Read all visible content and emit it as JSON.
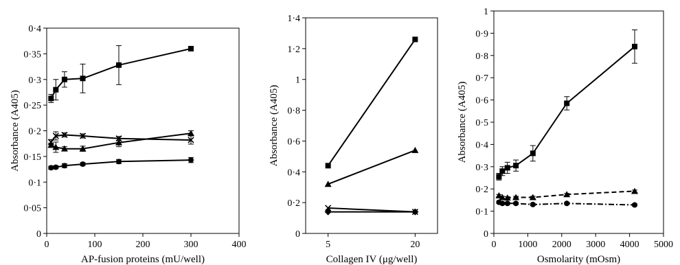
{
  "chart_data": [
    {
      "type": "line",
      "xlabel": "AP-fusion proteins (mU/well)",
      "ylabel": "Absorbance (A405)",
      "xlim": [
        0,
        400
      ],
      "ylim": [
        0,
        0.4
      ],
      "x_ticks": [
        0,
        100,
        200,
        300,
        400
      ],
      "x_tick_labels": [
        "0",
        "100",
        "200",
        "300",
        "400"
      ],
      "y_ticks": [
        0,
        0.05,
        0.1,
        0.15,
        0.2,
        0.25,
        0.3,
        0.35,
        0.4
      ],
      "y_tick_labels": [
        "0",
        "0·05",
        "0·1",
        "0·15",
        "0·2",
        "0·25",
        "0·3",
        "0·35",
        "0·4"
      ],
      "grid": false,
      "series": [
        {
          "marker": "square",
          "x": [
            9,
            19,
            37,
            75,
            150,
            300
          ],
          "y": [
            0.263,
            0.28,
            0.3,
            0.302,
            0.328,
            0.36
          ],
          "err": [
            0.008,
            0.02,
            0.015,
            0.028,
            0.038,
            0.003
          ]
        },
        {
          "marker": "cross",
          "x": [
            9,
            19,
            37,
            75,
            150,
            300
          ],
          "y": [
            0.178,
            0.19,
            0.192,
            0.19,
            0.185,
            0.182
          ],
          "err": [
            0.005,
            0.008,
            0.004,
            0.004,
            0.004,
            0.008
          ]
        },
        {
          "marker": "triangle",
          "x": [
            9,
            19,
            37,
            75,
            150,
            300
          ],
          "y": [
            0.172,
            0.168,
            0.165,
            0.165,
            0.177,
            0.195
          ],
          "err": [
            0.004,
            0.01,
            0.004,
            0.005,
            0.008,
            0.005
          ]
        },
        {
          "marker": "circle",
          "x": [
            9,
            19,
            37,
            75,
            150,
            300
          ],
          "y": [
            0.128,
            0.129,
            0.132,
            0.135,
            0.14,
            0.143
          ],
          "err": [
            0.003,
            0.003,
            0.004,
            0.003,
            0.004,
            0.005
          ]
        }
      ]
    },
    {
      "type": "line",
      "xlabel": "Collagen IV (μg/well)",
      "ylabel": "Absorbance (A405)",
      "categories": [
        "5",
        "20"
      ],
      "ylim": [
        0,
        1.4
      ],
      "y_ticks": [
        0,
        0.2,
        0.4,
        0.6,
        0.8,
        1.0,
        1.2,
        1.4
      ],
      "y_tick_labels": [
        "0",
        "0·2",
        "0·4",
        "0·6",
        "0·8",
        "1",
        "1·2",
        "1·4"
      ],
      "grid": false,
      "series": [
        {
          "marker": "square",
          "values": [
            0.44,
            1.26
          ]
        },
        {
          "marker": "triangle",
          "values": [
            0.32,
            0.54
          ]
        },
        {
          "marker": "cross",
          "values": [
            0.165,
            0.14
          ]
        },
        {
          "marker": "diamond",
          "values": [
            0.14,
            0.14
          ]
        }
      ]
    },
    {
      "type": "line",
      "xlabel": "Osmolarity (mOsm)",
      "ylabel": "Absorbance (A405)",
      "xlim": [
        0,
        5000
      ],
      "ylim": [
        0,
        1
      ],
      "x_ticks": [
        0,
        1000,
        2000,
        3000,
        4000,
        5000
      ],
      "x_tick_labels": [
        "0",
        "1000",
        "2000",
        "3000",
        "4000",
        "5000"
      ],
      "y_ticks": [
        0,
        0.1,
        0.2,
        0.3,
        0.4,
        0.5,
        0.6,
        0.7,
        0.8,
        0.9,
        1.0
      ],
      "y_tick_labels": [
        "0",
        "0·1",
        "0·2",
        "0·3",
        "0·4",
        "0·5",
        "0·6",
        "0·7",
        "0·8",
        "0·9",
        "1"
      ],
      "grid": false,
      "series": [
        {
          "marker": "square",
          "line_style": "solid",
          "x": [
            150,
            250,
            400,
            650,
            1150,
            2150,
            4150
          ],
          "y": [
            0.255,
            0.28,
            0.295,
            0.305,
            0.36,
            0.585,
            0.84
          ],
          "err": [
            0.015,
            0.02,
            0.025,
            0.025,
            0.035,
            0.03,
            0.075
          ]
        },
        {
          "marker": "triangle",
          "line_style": "dashed",
          "x": [
            150,
            250,
            400,
            650,
            1150,
            2150,
            4150
          ],
          "y": [
            0.17,
            0.162,
            0.16,
            0.162,
            0.162,
            0.175,
            0.19
          ],
          "err": [
            0.005,
            0.005,
            0.005,
            0.005,
            0.005,
            0.005,
            0.005
          ]
        },
        {
          "marker": "circle",
          "line_style": "dashdot",
          "x": [
            150,
            250,
            400,
            650,
            1150,
            2150,
            4150
          ],
          "y": [
            0.14,
            0.135,
            0.135,
            0.135,
            0.13,
            0.135,
            0.128
          ],
          "err": [
            0.005,
            0.005,
            0.005,
            0.005,
            0.005,
            0.005,
            0.005
          ]
        }
      ]
    }
  ]
}
